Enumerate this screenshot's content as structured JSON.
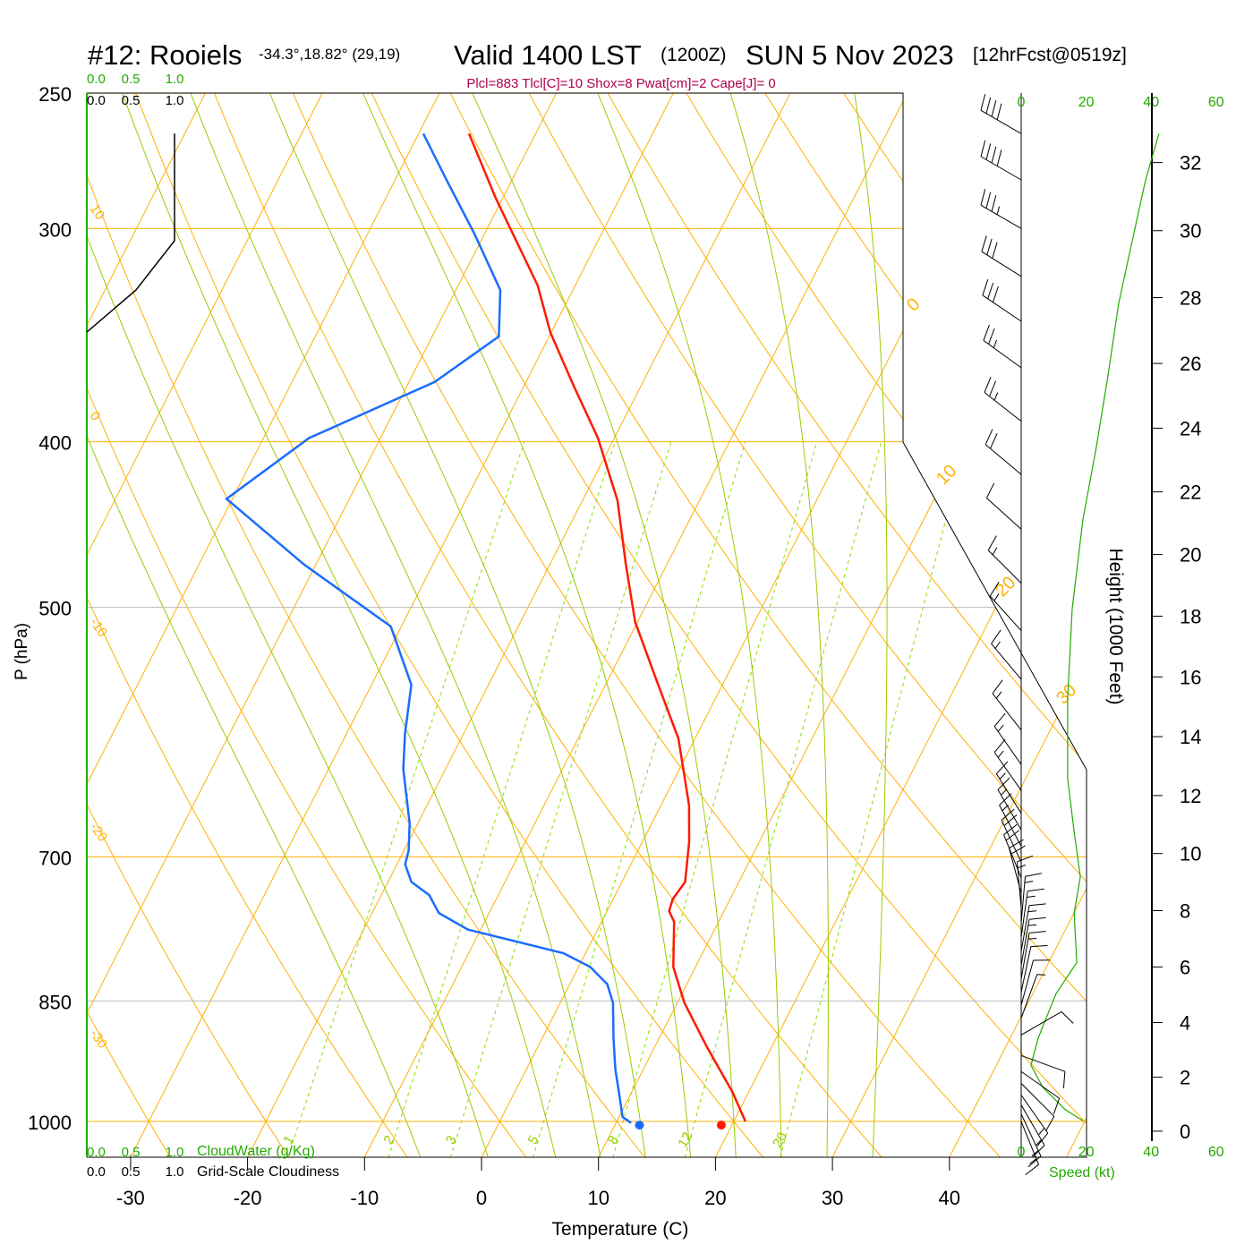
{
  "header": {
    "station": "#12: Rooiels",
    "coords": "-34.3°,18.82° (29,19)",
    "valid": "Valid 1400 LST",
    "zulu": "(1200Z)",
    "date": "SUN 5 Nov 2023",
    "forecast": "[12hrFcst@0519z]"
  },
  "stats": "Plcl=883 Tlcl[C]=10 Shox=8 Pwat[cm]=2 Cape[J]= 0",
  "colors": {
    "temperature": "#ff1a00",
    "dewpoint": "#1a6cff",
    "isotherm": "#ffb000",
    "moist_adiabat": "#99cc00",
    "mixing_ratio": "#88dd00",
    "axis_green": "#22aa00",
    "stats": "#b0004a",
    "cloudiness": "#000000",
    "wind_speed": "#22aa00"
  },
  "chart_data": {
    "type": "line",
    "title": "#12: Rooiels Valid 1400 LST (1200Z) SUN 5 Nov 2023",
    "pressure_axis": {
      "label": "P (hPa)",
      "ticks": [
        250,
        300,
        400,
        500,
        700,
        850,
        1000
      ],
      "range": [
        1049,
        250
      ],
      "scale": "log"
    },
    "temperature_axis": {
      "label": "Temperature (C)",
      "ticks": [
        -30,
        -20,
        -10,
        0,
        10,
        20,
        30,
        40
      ],
      "skewed": true
    },
    "height_axis": {
      "label": "Height (1000 Feet)",
      "ticks": [
        0,
        2,
        4,
        6,
        8,
        10,
        12,
        14,
        16,
        18,
        20,
        22,
        24,
        26,
        28,
        30,
        32
      ]
    },
    "speed_axis": {
      "label": "Speed (kt)",
      "ticks": [
        0,
        20,
        40,
        60
      ]
    },
    "cloudwater_axis": {
      "label": "CloudWater (g/Kg)",
      "ticks": [
        "0.0",
        "0.5",
        "1.0"
      ]
    },
    "cloudiness_axis": {
      "label": "Grid-Scale Cloudiness",
      "ticks": [
        "0.0",
        "0.5",
        "1.0"
      ]
    },
    "isotherm_labels": [
      0,
      10,
      20,
      30
    ],
    "adiabat_labels": [
      10,
      0,
      -10,
      -20,
      -30
    ],
    "mixing_ratio_labels": [
      1,
      2,
      3,
      5,
      8,
      12,
      20
    ],
    "series": [
      {
        "name": "Temperature",
        "p": [
          264,
          288,
          324,
          345,
          370,
          398,
          433,
          472,
          510,
          555,
          597,
          653,
          686,
          724,
          741,
          753,
          764,
          812,
          852,
          905,
          961,
          1000
        ],
        "t": [
          -45.7,
          -40.6,
          -33.2,
          -30.1,
          -25.9,
          -21.4,
          -17.0,
          -13.5,
          -10.2,
          -5.5,
          -1.4,
          2.4,
          4.0,
          5.4,
          5.1,
          5.3,
          6.2,
          8.1,
          10.6,
          14.5,
          18.6,
          21.0
        ]
      },
      {
        "name": "Dewpoint",
        "p": [
          264,
          281,
          302,
          326,
          347,
          369,
          398,
          432,
          472,
          513,
          555,
          593,
          622,
          669,
          694,
          707,
          724,
          737,
          755,
          772,
          797,
          812,
          831,
          852,
          894,
          932,
          961,
          994,
          1002
        ],
        "t": [
          -49.6,
          -45.6,
          -40.9,
          -36.2,
          -34.3,
          -37.8,
          -46.1,
          -50.5,
          -41.0,
          -30.9,
          -26.6,
          -25.0,
          -23.6,
          -20.7,
          -19.6,
          -19.3,
          -18.0,
          -15.9,
          -14.3,
          -11.1,
          -1.9,
          1.0,
          3.2,
          4.5,
          6.1,
          7.6,
          8.9,
          10.3,
          11.3
        ]
      },
      {
        "name": "Grid-Scale Cloudiness",
        "p": [
          264,
          305,
          326,
          345
        ],
        "value": [
          1.0,
          1.0,
          0.56,
          0.0
        ]
      },
      {
        "name": "Wind Speed (kt)",
        "p": [
          264,
          281,
          305,
          332,
          366,
          403,
          444,
          501,
          565,
          630,
          677,
          719,
          755,
          807,
          842,
          894,
          927,
          955,
          984,
          999
        ],
        "speed": [
          42.4,
          38.3,
          34.2,
          30.0,
          26.7,
          23.1,
          19.0,
          15.7,
          14.3,
          14.3,
          16.3,
          18.2,
          16.3,
          17.1,
          10.7,
          5.2,
          3.0,
          6.6,
          13.5,
          19.0
        ]
      }
    ],
    "surface": {
      "temperature": 19.1,
      "dewpoint": 12.1,
      "pressure": 1005
    },
    "wind_barbs": [
      {
        "p": 264,
        "dir": 300,
        "speed": 40
      },
      {
        "p": 281,
        "dir": 300,
        "speed": 38
      },
      {
        "p": 300,
        "dir": 300,
        "speed": 35
      },
      {
        "p": 320,
        "dir": 302,
        "speed": 30
      },
      {
        "p": 340,
        "dir": 304,
        "speed": 28
      },
      {
        "p": 362,
        "dir": 306,
        "speed": 26
      },
      {
        "p": 389,
        "dir": 308,
        "speed": 24
      },
      {
        "p": 418,
        "dir": 310,
        "speed": 22
      },
      {
        "p": 450,
        "dir": 312,
        "speed": 10
      },
      {
        "p": 484,
        "dir": 315,
        "speed": 17
      },
      {
        "p": 516,
        "dir": 318,
        "speed": 16
      },
      {
        "p": 551,
        "dir": 320,
        "speed": 15
      },
      {
        "p": 590,
        "dir": 322,
        "speed": 15
      },
      {
        "p": 618,
        "dir": 325,
        "speed": 15
      },
      {
        "p": 640,
        "dir": 325,
        "speed": 15
      },
      {
        "p": 660,
        "dir": 328,
        "speed": 16
      },
      {
        "p": 675,
        "dir": 330,
        "speed": 17
      },
      {
        "p": 690,
        "dir": 332,
        "speed": 17
      },
      {
        "p": 705,
        "dir": 335,
        "speed": 18
      },
      {
        "p": 720,
        "dir": 338,
        "speed": 18
      },
      {
        "p": 735,
        "dir": 345,
        "speed": 18
      },
      {
        "p": 750,
        "dir": 355,
        "speed": 17
      },
      {
        "p": 765,
        "dir": 5,
        "speed": 16
      },
      {
        "p": 780,
        "dir": 8,
        "speed": 17
      },
      {
        "p": 795,
        "dir": 10,
        "speed": 17
      },
      {
        "p": 810,
        "dir": 10,
        "speed": 16
      },
      {
        "p": 825,
        "dir": 10,
        "speed": 15
      },
      {
        "p": 840,
        "dir": 12,
        "speed": 12
      },
      {
        "p": 855,
        "dir": 15,
        "speed": 8
      },
      {
        "p": 870,
        "dir": 20,
        "speed": 6
      },
      {
        "p": 890,
        "dir": 60,
        "speed": 8
      },
      {
        "p": 915,
        "dir": 110,
        "speed": 10
      },
      {
        "p": 935,
        "dir": 125,
        "speed": 12
      },
      {
        "p": 950,
        "dir": 135,
        "speed": 12
      },
      {
        "p": 965,
        "dir": 145,
        "speed": 13
      },
      {
        "p": 978,
        "dir": 150,
        "speed": 13
      },
      {
        "p": 990,
        "dir": 155,
        "speed": 14
      },
      {
        "p": 1000,
        "dir": 158,
        "speed": 14
      }
    ]
  }
}
